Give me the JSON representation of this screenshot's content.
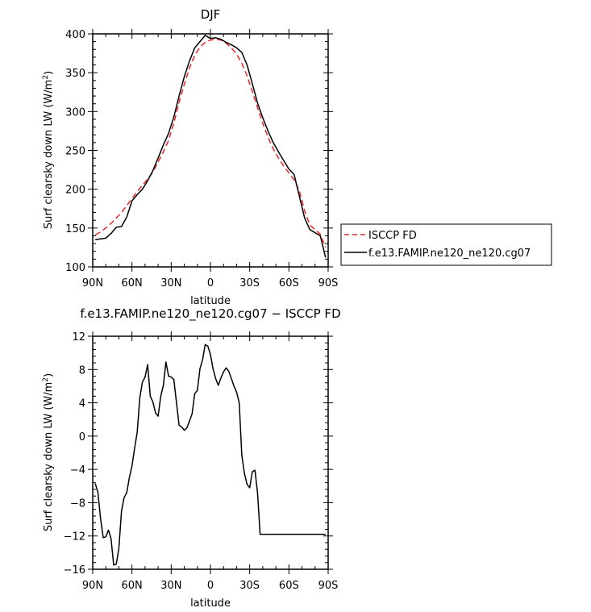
{
  "chart_data": [
    {
      "type": "line",
      "title": "DJF",
      "xlabel": "latitude",
      "ylabel": "Surf clearsky down LW (W/m²)",
      "ylabel_main": "Surf clearsky down LW (W/m",
      "ylabel_sup": "2",
      "ylabel_end": ")",
      "xlim": [
        -90,
        90
      ],
      "ylim": [
        100,
        400
      ],
      "x_ticks": [
        -90,
        -60,
        -30,
        0,
        30,
        60,
        90
      ],
      "x_tick_labels": [
        "90N",
        "60N",
        "30N",
        "0",
        "30S",
        "60S",
        "90S"
      ],
      "y_ticks": [
        100,
        150,
        200,
        250,
        300,
        350,
        400
      ],
      "y_tick_labels": [
        "100",
        "150",
        "200",
        "250",
        "300",
        "350",
        "400"
      ],
      "legend_position": "right",
      "series": [
        {
          "name": "ISCCP FD",
          "color": "#e8262b",
          "dash": "dashed",
          "x": [
            -88,
            -84,
            -80,
            -76,
            -72,
            -68,
            -64,
            -60,
            -56,
            -52,
            -48,
            -44,
            -40,
            -36,
            -32,
            -28,
            -24,
            -20,
            -16,
            -12,
            -8,
            -4,
            0,
            4,
            8,
            12,
            16,
            20,
            24,
            28,
            32,
            36,
            40,
            44,
            48,
            52,
            56,
            60,
            64,
            68,
            72,
            76,
            80,
            84,
            88
          ],
          "y": [
            141,
            145,
            150,
            156,
            163,
            170,
            179,
            188,
            197,
            205,
            213,
            222,
            235,
            248,
            263,
            285,
            312,
            335,
            356,
            372,
            383,
            389,
            392,
            393,
            392,
            388,
            382,
            374,
            362,
            346,
            326,
            305,
            285,
            267,
            252,
            240,
            230,
            221,
            212,
            198,
            172,
            154,
            148,
            142,
            125
          ]
        },
        {
          "name": "f.e13.FAMIP.ne120_ne120.cg07",
          "color": "#000000",
          "dash": "solid",
          "x": [
            -88,
            -84,
            -80,
            -76,
            -72,
            -68,
            -64,
            -60,
            -56,
            -52,
            -48,
            -44,
            -40,
            -36,
            -32,
            -28,
            -24,
            -20,
            -16,
            -12,
            -8,
            -4,
            0,
            4,
            8,
            12,
            16,
            20,
            24,
            28,
            32,
            36,
            40,
            44,
            48,
            52,
            56,
            60,
            64,
            68,
            72,
            76,
            80,
            84,
            88
          ],
          "y": [
            135,
            136,
            137,
            143,
            151,
            152,
            164,
            185,
            193,
            200,
            211,
            224,
            240,
            257,
            272,
            293,
            320,
            345,
            365,
            382,
            390,
            398,
            394,
            395,
            393,
            389,
            386,
            382,
            376,
            360,
            336,
            311,
            292,
            275,
            260,
            248,
            237,
            226,
            219,
            191,
            163,
            148,
            144,
            140,
            112
          ]
        }
      ]
    },
    {
      "type": "line",
      "title": "f.e13.FAMIP.ne120_ne120.cg07 − ISCCP FD",
      "xlabel": "latitude",
      "ylabel": "Surf clearsky down LW (W/m²)",
      "ylabel_main": "Surf clearsky down LW (W/m",
      "ylabel_sup": "2",
      "ylabel_end": ")",
      "xlim": [
        -90,
        90
      ],
      "ylim": [
        -16,
        12
      ],
      "x_ticks": [
        -90,
        -60,
        -30,
        0,
        30,
        60,
        90
      ],
      "x_tick_labels": [
        "90N",
        "60N",
        "30N",
        "0",
        "30S",
        "60S",
        "90S"
      ],
      "y_ticks": [
        -16,
        -12,
        -8,
        -4,
        0,
        4,
        8,
        12
      ],
      "y_tick_labels": [
        "−16",
        "−12",
        "−8",
        "−4",
        "0",
        "4",
        "8",
        "12"
      ],
      "series": [
        {
          "color": "#000000",
          "dash": "solid",
          "x": [
            -88,
            -86,
            -84,
            -82,
            -80,
            -78,
            -76,
            -74,
            -72,
            -70,
            -68,
            -66,
            -64,
            -62,
            -60,
            -58,
            -56,
            -54,
            -52,
            -50,
            -48,
            -46,
            -44,
            -42,
            -40,
            -38,
            -36,
            -34,
            -32,
            -30,
            -28,
            -26,
            -24,
            -22,
            -20,
            -18,
            -16,
            -14,
            -12,
            -10,
            -8,
            -6,
            -4,
            -2,
            0,
            2,
            4,
            6,
            8,
            10,
            12,
            14,
            16,
            18,
            20,
            22,
            24,
            26,
            28,
            30,
            32,
            34,
            36,
            38,
            40,
            42,
            44,
            46,
            48,
            50,
            52,
            54,
            56,
            58,
            60,
            62,
            64,
            66,
            68,
            70,
            72,
            74,
            76,
            78,
            80,
            82,
            84,
            86,
            88
          ],
          "y": [
            -5.7,
            -6.8,
            -9.9,
            -12.2,
            -12.1,
            -11.3,
            -12.3,
            -15.5,
            -15.4,
            -13.5,
            -9.0,
            -7.4,
            -6.8,
            -5.0,
            -3.6,
            -1.5,
            0.5,
            4.6,
            6.5,
            7.1,
            8.6,
            4.8,
            4.1,
            2.8,
            2.4,
            4.8,
            6.1,
            8.9,
            7.2,
            7.1,
            6.8,
            4.1,
            1.3,
            1.1,
            0.7,
            1.0,
            1.8,
            2.7,
            5.1,
            5.5,
            8.1,
            9.2,
            11.0,
            10.8,
            9.8,
            8.1,
            6.9,
            6.1,
            7.0,
            7.7,
            8.2,
            7.8,
            6.9,
            6.0,
            5.3,
            4.0,
            -2.3,
            -4.5,
            -5.8,
            -6.2,
            -4.3,
            -4.1,
            -6.8,
            -11.8,
            -11.8,
            -11.8,
            -11.8,
            -11.8,
            -11.8,
            -11.8,
            -11.8,
            -11.8,
            -11.8,
            -11.8,
            -11.8,
            -11.8,
            -11.8,
            -11.8,
            -11.8,
            -11.8,
            -11.8,
            -11.8,
            -11.8,
            -11.8,
            -11.8,
            -11.8,
            -11.8,
            -11.8,
            -11.8
          ]
        }
      ]
    }
  ]
}
